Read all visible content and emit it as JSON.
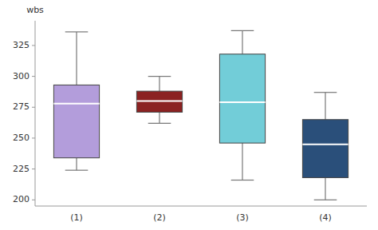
{
  "chart_data": {
    "type": "box",
    "ylabel": "wbs",
    "categories": [
      "(1)",
      "(2)",
      "(3)",
      "(4)"
    ],
    "values": [
      {
        "whislo": 224,
        "q1": 234,
        "med": 278,
        "q3": 293,
        "whishi": 336
      },
      {
        "whislo": 262,
        "q1": 271,
        "med": 280,
        "q3": 288,
        "whishi": 300
      },
      {
        "whislo": 216,
        "q1": 246,
        "med": 279,
        "q3": 318,
        "whishi": 337
      },
      {
        "whislo": 200,
        "q1": 218,
        "med": 245,
        "q3": 265,
        "whishi": 287
      }
    ],
    "colors": [
      "#b39ddb",
      "#8b2222",
      "#72cdd8",
      "#2a4f7a"
    ],
    "ylim": [
      195,
      345
    ],
    "yticks": [
      200,
      225,
      250,
      275,
      300,
      325
    ],
    "grid": false
  }
}
